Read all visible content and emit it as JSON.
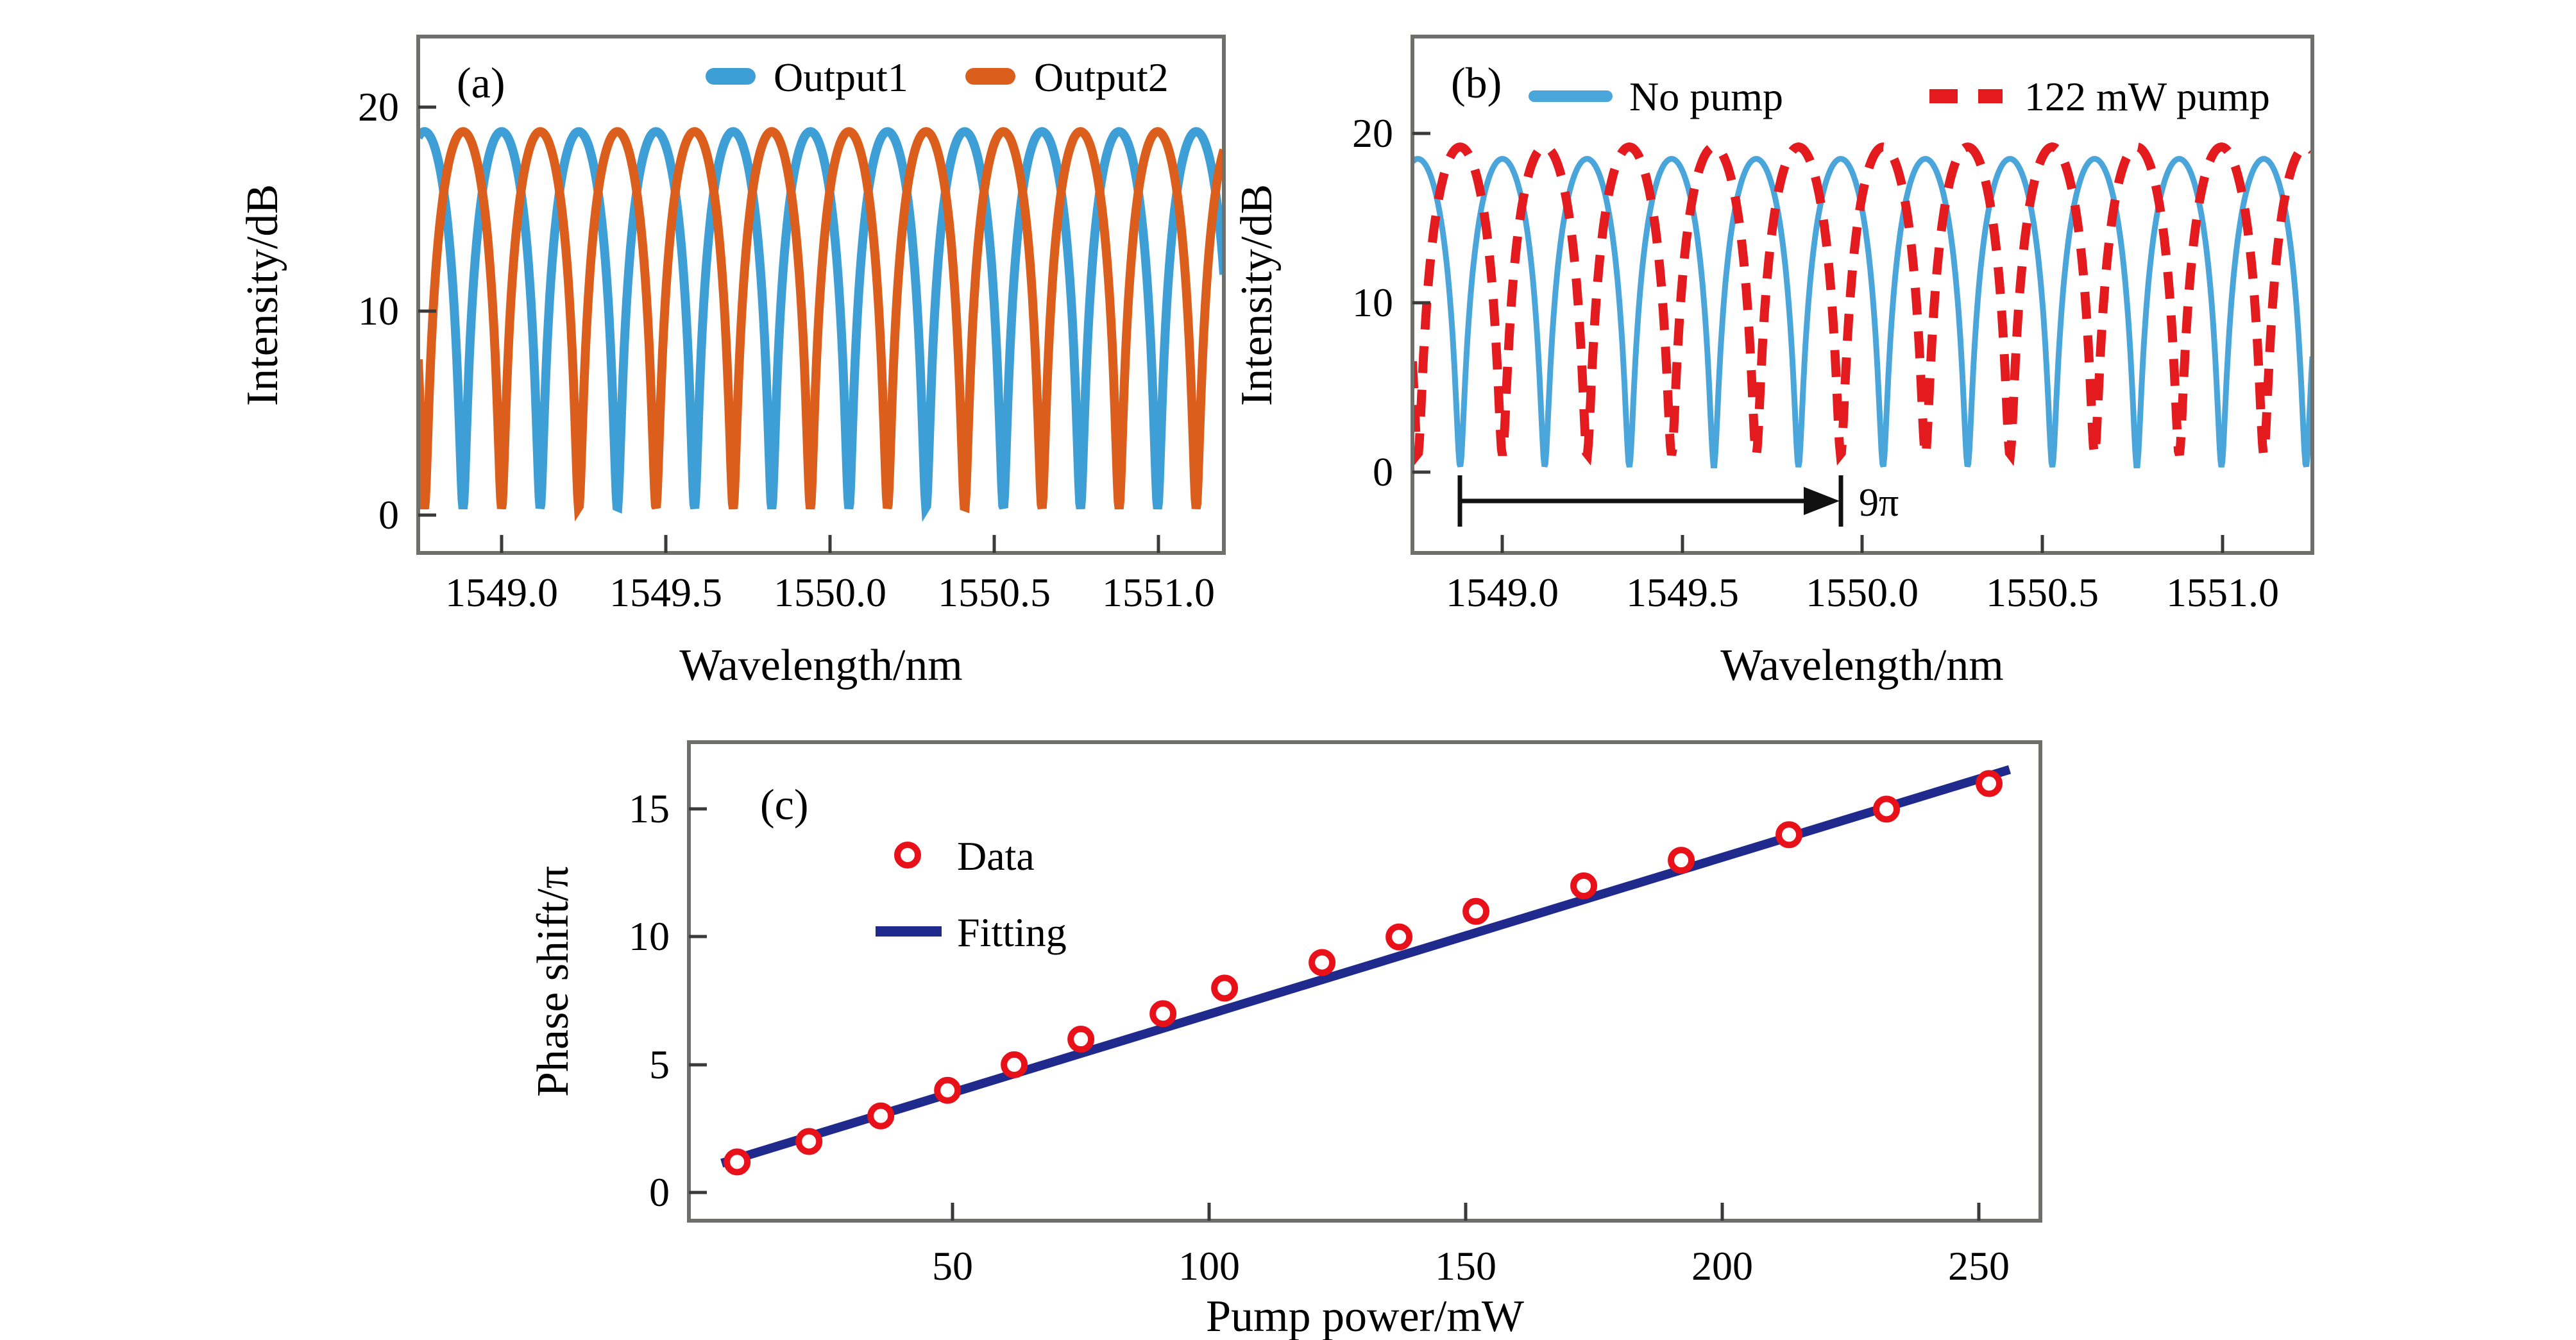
{
  "figure": {
    "type": "scientific-figure",
    "background": "#ffffff",
    "panels": [
      "a",
      "b",
      "c"
    ]
  },
  "panel_a": {
    "label": "(a)",
    "x_label": "Wavelength/nm",
    "y_label": "Intensity/dB",
    "x_tick_labels": [
      "1549.0",
      "1549.5",
      "1550.0",
      "1550.5",
      "1551.0"
    ],
    "y_tick_labels": [
      "0",
      "10",
      "20"
    ],
    "legend": {
      "items": [
        {
          "label": "Output1",
          "color": "#3D9FD6"
        },
        {
          "label": "Output2",
          "color": "#DC5E1C"
        }
      ]
    }
  },
  "panel_b": {
    "label": "(b)",
    "x_label": "Wavelength/nm",
    "y_label": "Intensity/dB",
    "x_tick_labels": [
      "1549.0",
      "1549.5",
      "1550.0",
      "1550.5",
      "1551.0"
    ],
    "y_tick_labels": [
      "0",
      "10",
      "20"
    ],
    "legend": {
      "items": [
        {
          "label": "No pump",
          "color": "#49A5DA"
        },
        {
          "label": "122 mW pump",
          "color": "#E31A1E"
        }
      ]
    },
    "annotation_9pi": "9π"
  },
  "panel_c": {
    "label": "(c)",
    "x_label": "Pump power/mW",
    "y_label": "Phase shift/π",
    "x_tick_labels": [
      "50",
      "100",
      "150",
      "200",
      "250"
    ],
    "y_tick_labels": [
      "0",
      "5",
      "10",
      "15"
    ],
    "legend": {
      "items": [
        {
          "label": "Data",
          "color": "#E8111A"
        },
        {
          "label": "Fitting",
          "color": "#202A8C"
        }
      ]
    }
  },
  "colors": {
    "output1_blue": "#3D9FD6",
    "output2_orange": "#DC5E1C",
    "no_pump_blue": "#49A5DA",
    "pump_red": "#E31A1E",
    "data_red": "#E8111A",
    "fitting_navy": "#202A8C",
    "axis_box": "#6F6F6B",
    "annotation_black": "#111111"
  },
  "chart_data": [
    {
      "panel": "a",
      "type": "line",
      "title": "",
      "xlabel": "Wavelength/nm",
      "ylabel": "Intensity/dB",
      "xlim": [
        1548.746,
        1551.199
      ],
      "ylim": [
        -1.86,
        23.46
      ],
      "x_ticks": [
        1549.0,
        1549.5,
        1550.0,
        1550.5,
        1551.0
      ],
      "y_ticks": [
        0,
        10,
        20
      ],
      "grid": false,
      "legend_position": "top-center",
      "series": [
        {
          "name": "Output1",
          "color": "#3D9FD6",
          "style": "solid",
          "waveform": "interference_fringe_dB",
          "period_nm": 0.235,
          "peak_wavelength_nm": 1549.0,
          "peak_dB": 18.8,
          "min_dB": 0.3
        },
        {
          "name": "Output2",
          "color": "#DC5E1C",
          "style": "solid",
          "waveform": "interference_fringe_dB",
          "period_nm": 0.235,
          "peak_wavelength_nm": 1548.8825,
          "peak_dB": 18.8,
          "min_dB": 0.3
        }
      ]
    },
    {
      "panel": "b",
      "type": "line",
      "title": "",
      "xlabel": "Wavelength/nm",
      "ylabel": "Intensity/dB",
      "xlim": [
        1548.75,
        1551.25
      ],
      "ylim": [
        -4.77,
        25.72
      ],
      "x_ticks": [
        1549.0,
        1549.5,
        1550.0,
        1550.5,
        1551.0
      ],
      "y_ticks": [
        0,
        10,
        20
      ],
      "grid": false,
      "legend_position": "top-center",
      "series": [
        {
          "name": "No pump",
          "color": "#49A5DA",
          "style": "solid",
          "waveform": "interference_fringe_dB",
          "period_nm": 0.235,
          "peak_wavelength_nm": 1549.0,
          "peak_dB": 18.5,
          "min_dB": 0.3
        },
        {
          "name": "122 mW pump",
          "color": "#E31A1E",
          "style": "dashed",
          "waveform": "interference_fringe_dB",
          "period_nm": 0.235,
          "peak_wavelength_nm": 1548.8825,
          "peak_dB": 19.2,
          "min_dB": 1.0
        }
      ],
      "annotation": {
        "text": "9π",
        "arrow_from_nm": 1548.8825,
        "arrow_to_nm": 1549.94,
        "y_dB": -1.9
      }
    },
    {
      "panel": "c",
      "type": "scatter",
      "title": "",
      "xlabel": "Pump power/mW",
      "ylabel": "Phase shift/π",
      "xlim": [
        -1.4,
        262
      ],
      "ylim": [
        -1.1,
        17.62
      ],
      "x_ticks": [
        50,
        100,
        150,
        200,
        250
      ],
      "y_ticks": [
        0,
        5,
        10,
        15
      ],
      "grid": false,
      "marker": "open-circle",
      "marker_color": "#E8111A",
      "points": [
        [
          8,
          1.2
        ],
        [
          22,
          2
        ],
        [
          36,
          3
        ],
        [
          49,
          4
        ],
        [
          62,
          5
        ],
        [
          75,
          6
        ],
        [
          91,
          7
        ],
        [
          103,
          8
        ],
        [
          122,
          9
        ],
        [
          137,
          10
        ],
        [
          152,
          11
        ],
        [
          173,
          12
        ],
        [
          192,
          13
        ],
        [
          213,
          14
        ],
        [
          232,
          15
        ],
        [
          252,
          16
        ]
      ],
      "fit_line": {
        "name": "Fitting",
        "color": "#202A8C",
        "from": [
          5,
          1.15
        ],
        "to": [
          256,
          16.55
        ]
      }
    }
  ]
}
